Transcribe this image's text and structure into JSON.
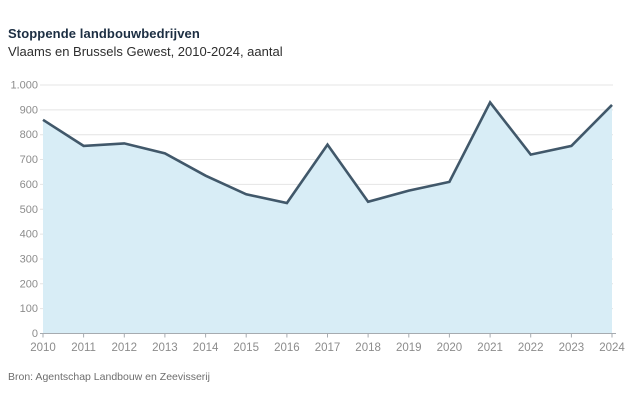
{
  "header": {
    "title": "Stoppende landbouwbedrijven",
    "subtitle": "Vlaams en Brussels Gewest, 2010-2024, aantal"
  },
  "footer": {
    "source": "Bron: Agentschap Landbouw en Zeevisserij"
  },
  "chart_data": {
    "type": "area",
    "title": "Stoppende landbouwbedrijven",
    "subtitle": "Vlaams en Brussels Gewest, 2010-2024, aantal",
    "source": "Bron: Agentschap Landbouw en Zeevisserij",
    "categories": [
      "2010",
      "2011",
      "2012",
      "2013",
      "2014",
      "2015",
      "2016",
      "2017",
      "2018",
      "2019",
      "2020",
      "2021",
      "2022",
      "2023",
      "2024"
    ],
    "values": [
      860,
      755,
      765,
      725,
      635,
      560,
      525,
      760,
      530,
      575,
      610,
      930,
      720,
      755,
      920
    ],
    "xlabel": "",
    "ylabel": "",
    "ylim": [
      0,
      1000
    ],
    "y_tick_step": 100,
    "y_tick_labels": [
      "0",
      "100",
      "200",
      "300",
      "400",
      "500",
      "600",
      "700",
      "800",
      "900",
      "1.000"
    ],
    "grid": "horizontal",
    "legend": "none",
    "colors": {
      "line": "#41586a",
      "area": "#d8edf6",
      "grid": "#e4e4e4",
      "axis": "#a6abb0",
      "tick_label": "#8c8c8c",
      "title": "#1c2e42",
      "subtitle": "#2e2e2e",
      "source": "#6e6e6e",
      "background": "#ffffff"
    }
  }
}
